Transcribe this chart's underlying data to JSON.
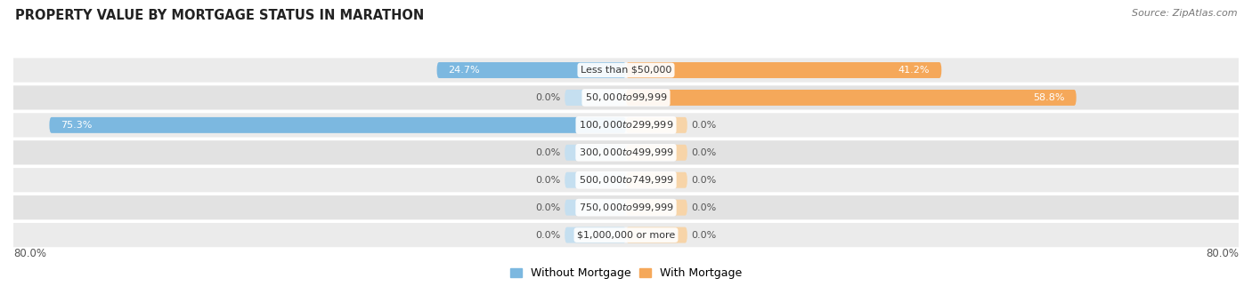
{
  "title": "PROPERTY VALUE BY MORTGAGE STATUS IN MARATHON",
  "source": "Source: ZipAtlas.com",
  "categories": [
    "Less than $50,000",
    "$50,000 to $99,999",
    "$100,000 to $299,999",
    "$300,000 to $499,999",
    "$500,000 to $749,999",
    "$750,000 to $999,999",
    "$1,000,000 or more"
  ],
  "without_mortgage": [
    24.7,
    0.0,
    75.3,
    0.0,
    0.0,
    0.0,
    0.0
  ],
  "with_mortgage": [
    41.2,
    58.8,
    0.0,
    0.0,
    0.0,
    0.0,
    0.0
  ],
  "xlim": 80.0,
  "color_without": "#7cb8e0",
  "color_with": "#f5a85a",
  "color_without_pale": "#c5dff0",
  "color_with_pale": "#f7d4a8",
  "row_colors": [
    "#ebebeb",
    "#e2e2e2"
  ],
  "label_fontsize": 8.0,
  "title_fontsize": 10.5,
  "legend_label_without": "Without Mortgage",
  "legend_label_with": "With Mortgage",
  "x_axis_label_left": "80.0%",
  "x_axis_label_right": "80.0%",
  "stub_size": 8.0
}
